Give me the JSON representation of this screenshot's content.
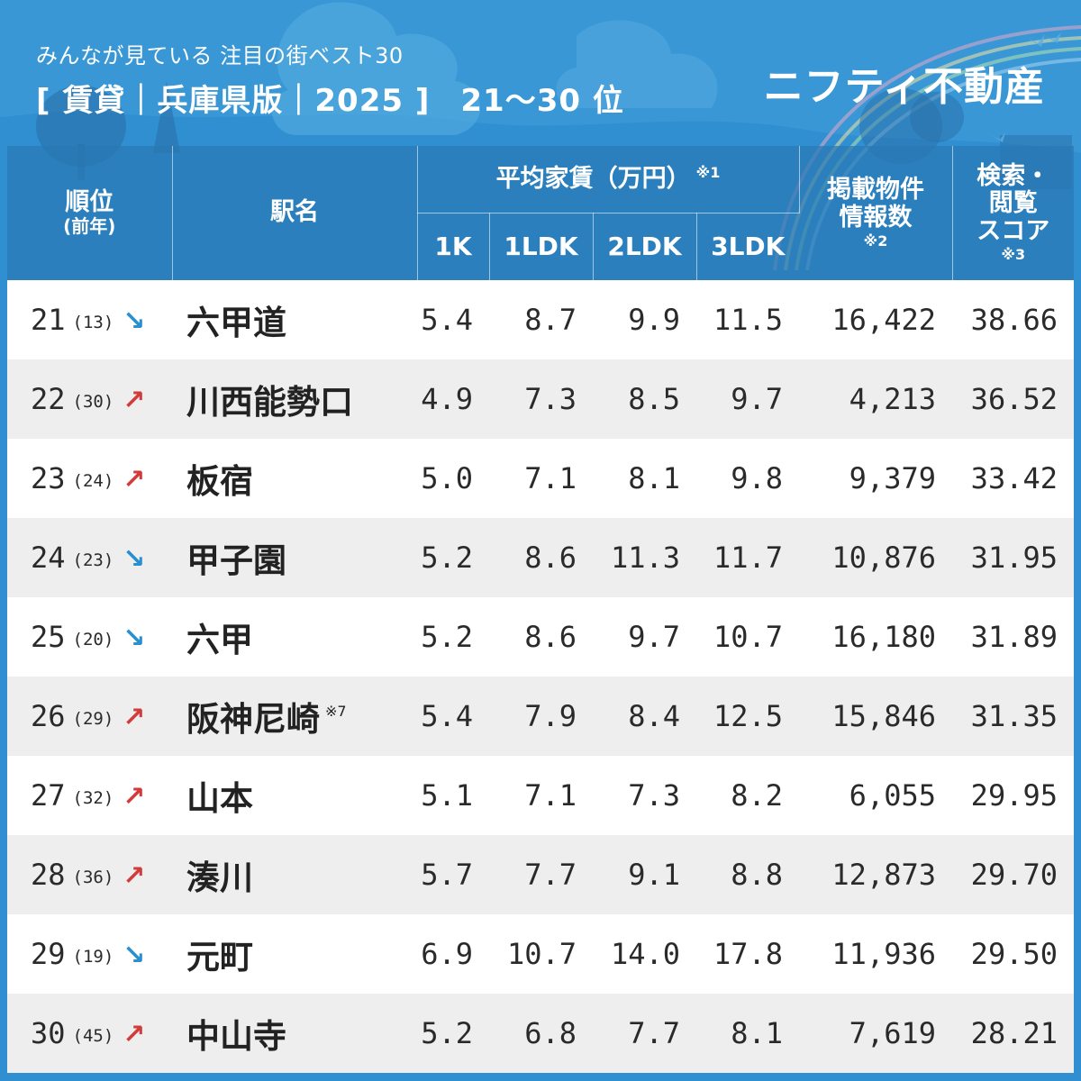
{
  "header": {
    "subtitle": "みんなが見ている 注目の街ベスト30",
    "title": "[ 賃貸｜兵庫県版｜2025 ]",
    "range": "21〜30 位",
    "brand": "ニフティ不動産"
  },
  "columns": {
    "rank": "順位",
    "rank_sub": "(前年)",
    "station": "駅名",
    "rent_group": "平均家賃（万円）",
    "rent_note": "※1",
    "rent_1k": "1K",
    "rent_1ldk": "1LDK",
    "rent_2ldk": "2LDK",
    "rent_3ldk": "3LDK",
    "listings_line1": "掲載物件",
    "listings_line2": "情報数",
    "listings_note": "※2",
    "score_line1": "検索・",
    "score_line2": "閲覧",
    "score_line3": "スコア",
    "score_note": "※3"
  },
  "rows": [
    {
      "rank": "21",
      "prev": "(13)",
      "trend": "down",
      "arrow": "↘",
      "station": "六甲道",
      "note": "",
      "k1": "5.4",
      "ldk1": "8.7",
      "ldk2": "9.9",
      "ldk3": "11.5",
      "listings": "16,422",
      "score": "38.66"
    },
    {
      "rank": "22",
      "prev": "(30)",
      "trend": "up",
      "arrow": "↗",
      "station": "川西能勢口",
      "note": "",
      "k1": "4.9",
      "ldk1": "7.3",
      "ldk2": "8.5",
      "ldk3": "9.7",
      "listings": "4,213",
      "score": "36.52"
    },
    {
      "rank": "23",
      "prev": "(24)",
      "trend": "up",
      "arrow": "↗",
      "station": "板宿",
      "note": "",
      "k1": "5.0",
      "ldk1": "7.1",
      "ldk2": "8.1",
      "ldk3": "9.8",
      "listings": "9,379",
      "score": "33.42"
    },
    {
      "rank": "24",
      "prev": "(23)",
      "trend": "down",
      "arrow": "↘",
      "station": "甲子園",
      "note": "",
      "k1": "5.2",
      "ldk1": "8.6",
      "ldk2": "11.3",
      "ldk3": "11.7",
      "listings": "10,876",
      "score": "31.95"
    },
    {
      "rank": "25",
      "prev": "(20)",
      "trend": "down",
      "arrow": "↘",
      "station": "六甲",
      "note": "",
      "k1": "5.2",
      "ldk1": "8.6",
      "ldk2": "9.7",
      "ldk3": "10.7",
      "listings": "16,180",
      "score": "31.89"
    },
    {
      "rank": "26",
      "prev": "(29)",
      "trend": "up",
      "arrow": "↗",
      "station": "阪神尼崎",
      "note": "※7",
      "k1": "5.4",
      "ldk1": "7.9",
      "ldk2": "8.4",
      "ldk3": "12.5",
      "listings": "15,846",
      "score": "31.35"
    },
    {
      "rank": "27",
      "prev": "(32)",
      "trend": "up",
      "arrow": "↗",
      "station": "山本",
      "note": "",
      "k1": "5.1",
      "ldk1": "7.1",
      "ldk2": "7.3",
      "ldk3": "8.2",
      "listings": "6,055",
      "score": "29.95"
    },
    {
      "rank": "28",
      "prev": "(36)",
      "trend": "up",
      "arrow": "↗",
      "station": "湊川",
      "note": "",
      "k1": "5.7",
      "ldk1": "7.7",
      "ldk2": "9.1",
      "ldk3": "8.8",
      "listings": "12,873",
      "score": "29.70"
    },
    {
      "rank": "29",
      "prev": "(19)",
      "trend": "down",
      "arrow": "↘",
      "station": "元町",
      "note": "",
      "k1": "6.9",
      "ldk1": "10.7",
      "ldk2": "14.0",
      "ldk3": "17.8",
      "listings": "11,936",
      "score": "29.50"
    },
    {
      "rank": "30",
      "prev": "(45)",
      "trend": "up",
      "arrow": "↗",
      "station": "中山寺",
      "note": "",
      "k1": "5.2",
      "ldk1": "6.8",
      "ldk2": "7.7",
      "ldk3": "8.1",
      "listings": "7,619",
      "score": "28.21"
    }
  ],
  "colors": {
    "background": "#2f8fd0",
    "up_arrow": "#d33a3a",
    "down_arrow": "#2a8fcf"
  }
}
